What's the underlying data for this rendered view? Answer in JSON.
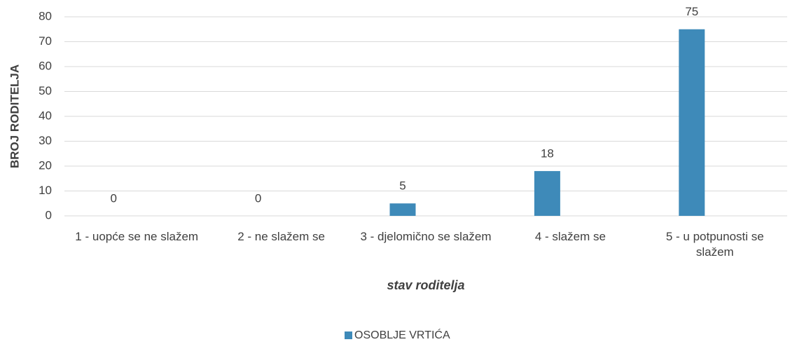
{
  "chart_data": {
    "type": "bar",
    "ylabel": "BROJ RODITELJA",
    "xlabel": "stav roditelja",
    "categories": [
      "1 - uopće se ne slažem",
      "2 - ne slažem se",
      "3 - djelomično se slažem",
      "4 - slažem se",
      "5 - u potpunosti se slažem"
    ],
    "series": [
      {
        "name": "OSOBLJE VRTIĆA",
        "color": "#3e8ab9",
        "values": [
          0,
          0,
          5,
          18,
          75
        ]
      }
    ],
    "ylim": [
      0,
      80
    ],
    "yticks": [
      0,
      10,
      20,
      30,
      40,
      50,
      60,
      70,
      80
    ],
    "grid": true,
    "legend": "bottom"
  }
}
